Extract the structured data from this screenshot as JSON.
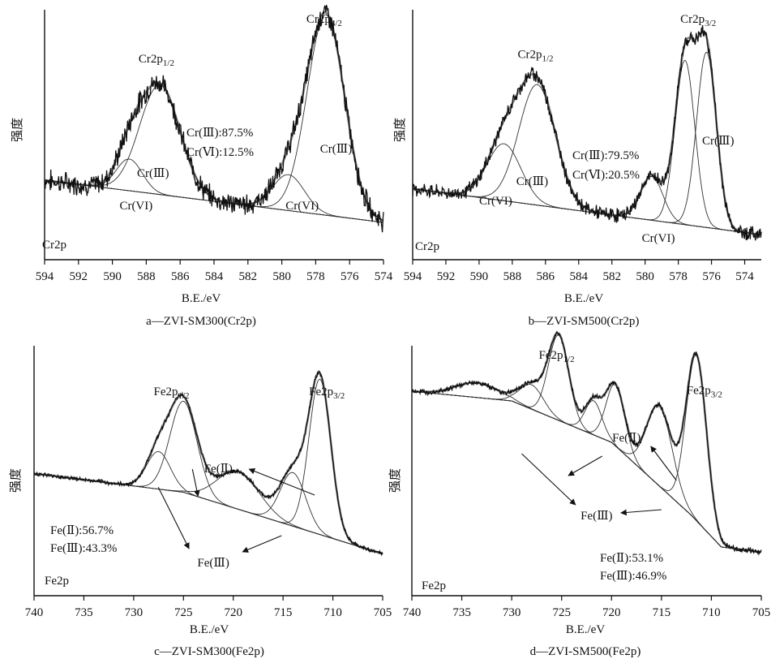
{
  "chart_data": [
    {
      "id": "a",
      "type": "line",
      "caption": "a—ZVI-SM300(Cr2p)",
      "xlabel": "B.E./eV",
      "ylabel": "强度",
      "element_label": "Cr2p",
      "xlim": [
        594,
        574
      ],
      "x_ticks": [
        594,
        592,
        590,
        588,
        586,
        584,
        582,
        580,
        578,
        576,
        574
      ],
      "peak_labels": [
        {
          "base": "Cr2p",
          "sub": "1/2",
          "x": 587.4
        },
        {
          "base": "Cr2p",
          "sub": "3/2",
          "x": 577.5
        }
      ],
      "component_labels": [
        {
          "text": "Cr(Ⅲ)",
          "x": 587.6
        },
        {
          "text": "Cr(Ⅲ)",
          "x": 576.8
        },
        {
          "text": "Cr(VI)",
          "x": 588.6
        },
        {
          "text": "Cr(VI)",
          "x": 578.8
        }
      ],
      "annotation_lines": [
        "Cr(Ⅲ):87.5%",
        "Cr(Ⅵ):12.5%"
      ],
      "percentages": {
        "Cr(III)": 87.5,
        "Cr(VI)": 12.5
      },
      "background": [
        [
          594,
          0.3
        ],
        [
          574,
          0.1
        ]
      ],
      "peaks": [
        {
          "center": 577.4,
          "fwhm": 2.6,
          "height": 0.95
        },
        {
          "center": 579.6,
          "fwhm": 2.2,
          "height": 0.17
        },
        {
          "center": 587.2,
          "fwhm": 2.8,
          "height": 0.52
        },
        {
          "center": 589.0,
          "fwhm": 1.8,
          "height": 0.15
        }
      ],
      "noise": 0.04
    },
    {
      "id": "b",
      "type": "line",
      "caption": "b—ZVI-SM500(Cr2p)",
      "xlabel": "B.E./eV",
      "ylabel": "强度",
      "element_label": "Cr2p",
      "xlim": [
        594,
        573
      ],
      "x_ticks": [
        594,
        592,
        590,
        588,
        586,
        584,
        582,
        580,
        578,
        576,
        574
      ],
      "peak_labels": [
        {
          "base": "Cr2p",
          "sub": "1/2",
          "x": 586.6
        },
        {
          "base": "Cr2p",
          "sub": "3/2",
          "x": 576.8
        }
      ],
      "component_labels": [
        {
          "text": "Cr(Ⅲ)",
          "x": 586.8
        },
        {
          "text": "Cr(Ⅲ)",
          "x": 575.6
        },
        {
          "text": "Cr(VI)",
          "x": 589.0
        },
        {
          "text": "Cr(VI)",
          "x": 579.2
        }
      ],
      "annotation_lines": [
        "Cr(Ⅲ):79.5%",
        "Cr(Ⅵ):20.5%"
      ],
      "percentages": {
        "Cr(III)": 79.5,
        "Cr(VI)": 20.5
      },
      "background": [
        [
          594,
          0.25
        ],
        [
          573,
          0.04
        ]
      ],
      "peaks": [
        {
          "center": 576.3,
          "fwhm": 1.4,
          "height": 0.8
        },
        {
          "center": 577.6,
          "fwhm": 1.4,
          "height": 0.75
        },
        {
          "center": 579.6,
          "fwhm": 1.6,
          "height": 0.2
        },
        {
          "center": 586.5,
          "fwhm": 2.6,
          "height": 0.55
        },
        {
          "center": 588.5,
          "fwhm": 2.4,
          "height": 0.26
        }
      ],
      "noise": 0.025
    },
    {
      "id": "c",
      "type": "line",
      "caption": "c—ZVI-SM300(Fe2p)",
      "xlabel": "B.E./eV",
      "ylabel": "强度",
      "element_label": "Fe2p",
      "xlim": [
        740,
        705
      ],
      "x_ticks": [
        740,
        735,
        730,
        725,
        720,
        715,
        710,
        705
      ],
      "peak_labels": [
        {
          "base": "Fe2p",
          "sub": "1/2",
          "x": 726.2
        },
        {
          "base": "Fe2p",
          "sub": "3/2",
          "x": 710.6
        }
      ],
      "component_labels": [
        {
          "text": "Fe(Ⅱ)",
          "x": 721.5
        },
        {
          "text": "Fe(Ⅲ)",
          "x": 722.0
        }
      ],
      "annotation_lines": [
        "Fe(Ⅱ):56.7%",
        "Fe(Ⅲ):43.3%"
      ],
      "percentages": {
        "Fe(II)": 56.7,
        "Fe(III)": 43.3
      },
      "background": [
        [
          740,
          0.42
        ],
        [
          725,
          0.35
        ],
        [
          712,
          0.2
        ],
        [
          705,
          0.12
        ]
      ],
      "peaks": [
        {
          "center": 711.3,
          "fwhm": 2.6,
          "height": 0.58
        },
        {
          "center": 714.0,
          "fwhm": 3.0,
          "height": 0.2
        },
        {
          "center": 719.5,
          "fwhm": 5.0,
          "height": 0.14
        },
        {
          "center": 725.0,
          "fwhm": 3.2,
          "height": 0.34
        },
        {
          "center": 727.5,
          "fwhm": 2.8,
          "height": 0.14
        }
      ],
      "noise": 0.006
    },
    {
      "id": "d",
      "type": "line",
      "caption": "d—ZVI-SM500(Fe2p)",
      "xlabel": "B.E./eV",
      "ylabel": "强度",
      "element_label": "Fe2p",
      "xlim": [
        740,
        705
      ],
      "x_ticks": [
        740,
        735,
        730,
        725,
        720,
        715,
        710,
        705
      ],
      "peak_labels": [
        {
          "base": "Fe2p",
          "sub": "1/2",
          "x": 725.5
        },
        {
          "base": "Fe2p",
          "sub": "3/2",
          "x": 710.7
        }
      ],
      "component_labels": [
        {
          "text": "Fe(Ⅱ)",
          "x": 718.5
        },
        {
          "text": "Fe(Ⅲ)",
          "x": 721.5
        }
      ],
      "annotation_lines": [
        "Fe(Ⅱ):53.1%",
        "Fe(Ⅲ):46.9%"
      ],
      "percentages": {
        "Fe(II)": 53.1,
        "Fe(III)": 46.9
      },
      "background": [
        [
          740,
          0.76
        ],
        [
          730,
          0.72
        ],
        [
          720,
          0.55
        ],
        [
          712,
          0.25
        ],
        [
          709,
          0.12
        ],
        [
          705,
          0.1
        ]
      ],
      "peaks": [
        {
          "center": 711.5,
          "fwhm": 2.4,
          "height": 0.68
        },
        {
          "center": 715.2,
          "fwhm": 3.0,
          "height": 0.33
        },
        {
          "center": 719.6,
          "fwhm": 2.2,
          "height": 0.25
        },
        {
          "center": 721.8,
          "fwhm": 2.0,
          "height": 0.14
        },
        {
          "center": 725.3,
          "fwhm": 2.4,
          "height": 0.35
        },
        {
          "center": 728.0,
          "fwhm": 2.8,
          "height": 0.1
        },
        {
          "center": 733.5,
          "fwhm": 5.0,
          "height": 0.06
        }
      ],
      "noise": 0.008
    }
  ]
}
